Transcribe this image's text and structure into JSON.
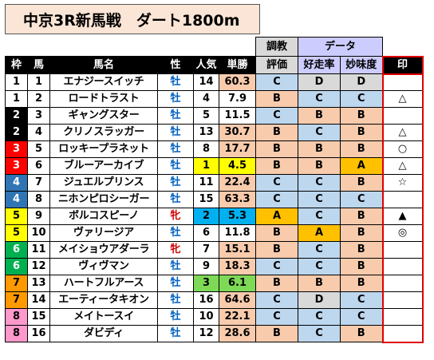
{
  "title": "中京3R新馬戦　ダート1800m",
  "headers": {
    "waku": "枠",
    "uma": "馬",
    "name": "馬名",
    "sex": "性",
    "pop": "人気",
    "odds": "単勝",
    "training_top": "調教",
    "training_bottom": "評価",
    "data_group": "データ",
    "rate": "好走率",
    "sense": "妙味度",
    "mark": "印"
  },
  "rows": [
    {
      "waku": "1",
      "uma": "1",
      "name": "エナジースイッチ",
      "sex": "牡",
      "pop": "14",
      "odds": "60.3",
      "training": "C",
      "rate": "D",
      "sense": "D",
      "mark": ""
    },
    {
      "waku": "1",
      "uma": "2",
      "name": "ロードトラスト",
      "sex": "牡",
      "pop": "4",
      "odds": "7.9",
      "training": "B",
      "rate": "C",
      "sense": "C",
      "mark": "△"
    },
    {
      "waku": "2",
      "uma": "3",
      "name": "ギャングスター",
      "sex": "牡",
      "pop": "5",
      "odds": "11.5",
      "training": "C",
      "rate": "B",
      "sense": "B",
      "mark": ""
    },
    {
      "waku": "2",
      "uma": "4",
      "name": "クリノスラッガー",
      "sex": "牡",
      "pop": "13",
      "odds": "30.7",
      "training": "B",
      "rate": "C",
      "sense": "B",
      "mark": "△"
    },
    {
      "waku": "3",
      "uma": "5",
      "name": "ロッキープラネット",
      "sex": "牡",
      "pop": "8",
      "odds": "17.7",
      "training": "B",
      "rate": "B",
      "sense": "B",
      "mark": "○"
    },
    {
      "waku": "3",
      "uma": "6",
      "name": "ブルーアーカイブ",
      "sex": "牡",
      "pop": "1",
      "odds": "4.5",
      "training": "B",
      "rate": "B",
      "sense": "A",
      "mark": "△"
    },
    {
      "waku": "4",
      "uma": "7",
      "name": "ジュエルプリンス",
      "sex": "牡",
      "pop": "11",
      "odds": "22.4",
      "training": "C",
      "rate": "C",
      "sense": "B",
      "mark": "☆"
    },
    {
      "waku": "4",
      "uma": "8",
      "name": "ニホンピロシーガー",
      "sex": "牡",
      "pop": "15",
      "odds": "63.3",
      "training": "C",
      "rate": "C",
      "sense": "C",
      "mark": ""
    },
    {
      "waku": "5",
      "uma": "9",
      "name": "ボルコスピーノ",
      "sex": "牝",
      "pop": "2",
      "odds": "5.3",
      "training": "A",
      "rate": "C",
      "sense": "B",
      "mark": "▲"
    },
    {
      "waku": "5",
      "uma": "10",
      "name": "ヴァリージア",
      "sex": "牡",
      "pop": "6",
      "odds": "11.8",
      "training": "B",
      "rate": "A",
      "sense": "B",
      "mark": "◎"
    },
    {
      "waku": "6",
      "uma": "11",
      "name": "メイショウアダーラ",
      "sex": "牝",
      "pop": "7",
      "odds": "15.1",
      "training": "B",
      "rate": "C",
      "sense": "B",
      "mark": ""
    },
    {
      "waku": "6",
      "uma": "12",
      "name": "ヴィヴマン",
      "sex": "牡",
      "pop": "9",
      "odds": "18.3",
      "training": "C",
      "rate": "C",
      "sense": "B",
      "mark": ""
    },
    {
      "waku": "7",
      "uma": "13",
      "name": "ハートフルアース",
      "sex": "牡",
      "pop": "3",
      "odds": "6.1",
      "training": "B",
      "rate": "B",
      "sense": "B",
      "mark": ""
    },
    {
      "waku": "7",
      "uma": "14",
      "name": "エーティータキオン",
      "sex": "牡",
      "pop": "16",
      "odds": "64.6",
      "training": "C",
      "rate": "D",
      "sense": "C",
      "mark": ""
    },
    {
      "waku": "8",
      "uma": "15",
      "name": "メイトースイ",
      "sex": "牡",
      "pop": "10",
      "odds": "22.1",
      "training": "C",
      "rate": "C",
      "sense": "C",
      "mark": ""
    },
    {
      "waku": "8",
      "uma": "16",
      "name": "ダビディ",
      "sex": "牡",
      "pop": "12",
      "odds": "28.6",
      "training": "B",
      "rate": "C",
      "sense": "B",
      "mark": ""
    }
  ],
  "colors": {
    "waku_1": "#ffffff",
    "waku_2": "#000000",
    "waku_3": "#ff0000",
    "waku_4": "#2f75b5",
    "waku_5": "#ffff00",
    "waku_6": "#00b050",
    "waku_7": "#ff9900",
    "waku_8": "#ff99cc",
    "grade_A": "#ffc000",
    "grade_B": "#f8cbad",
    "grade_C": "#bdd7ee",
    "grade_D": "#d9d9d9",
    "mark_border": "#e00000",
    "title_bg": "#fbe5d6"
  }
}
